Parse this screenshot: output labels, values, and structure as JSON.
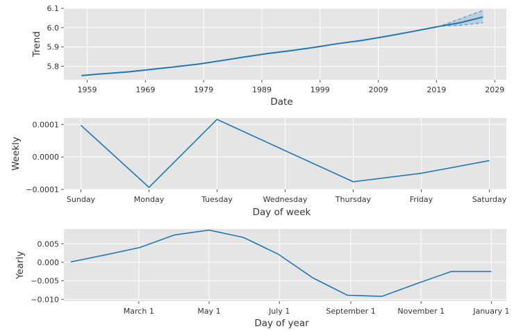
{
  "chart_data": [
    {
      "type": "line",
      "xlabel": "Date",
      "ylabel": "Trend",
      "xlim": [
        1955,
        2031
      ],
      "ylim": [
        5.73,
        6.1
      ],
      "x_ticks": [
        1959,
        1969,
        1979,
        1989,
        1999,
        2009,
        2019,
        2029
      ],
      "x_tick_labels": [
        "1959",
        "1969",
        "1979",
        "1989",
        "1999",
        "2009",
        "2019",
        "2029"
      ],
      "y_ticks": [
        5.8,
        5.9,
        6.0,
        6.1
      ],
      "y_tick_labels": [
        "5.8",
        "5.9",
        "6.0",
        "6.1"
      ],
      "grid": true,
      "series": [
        {
          "x": [
            1958,
            1962,
            1966,
            1970,
            1974,
            1978,
            1982,
            1986,
            1990,
            1994,
            1998,
            2002,
            2006,
            2010,
            2014,
            2018,
            2020,
            2023,
            2027
          ],
          "values": [
            5.752,
            5.762,
            5.771,
            5.784,
            5.797,
            5.811,
            5.829,
            5.848,
            5.866,
            5.881,
            5.898,
            5.917,
            5.933,
            5.953,
            5.975,
            5.998,
            6.01,
            6.025,
            6.055
          ]
        }
      ],
      "uncertainty": {
        "x": [
          2020,
          2023,
          2027
        ],
        "upper": [
          6.012,
          6.045,
          6.09
        ],
        "lower": [
          6.008,
          6.012,
          6.025
        ]
      }
    },
    {
      "type": "line",
      "xlabel": "Day of week",
      "ylabel": "Weekly",
      "categories": [
        "Sunday",
        "Monday",
        "Tuesday",
        "Wednesday",
        "Thursday",
        "Friday",
        "Saturday"
      ],
      "xlim": [
        -0.25,
        6.25
      ],
      "ylim": [
        -0.0001,
        0.00012
      ],
      "y_ticks": [
        0.0001,
        0.0,
        -0.0001
      ],
      "y_tick_labels": [
        "0.0001",
        "0.0000",
        "−0.0001"
      ],
      "grid": true,
      "series": [
        {
          "values": [
            9.75e-05,
            -9.35e-05,
            0.0001155,
            1.94e-05,
            -7.63e-05,
            -5.02e-05,
            -1.13e-05
          ]
        }
      ]
    },
    {
      "type": "line",
      "xlabel": "Day of year",
      "ylabel": "Yearly",
      "xlim": [
        -6,
        378
      ],
      "ylim": [
        -0.0105,
        0.009
      ],
      "x_ticks": [
        59,
        120,
        181,
        243,
        304,
        365
      ],
      "x_tick_labels": [
        "March 1",
        "May 1",
        "July 1",
        "September 1",
        "November 1",
        "January 1"
      ],
      "y_ticks": [
        0.005,
        0.0,
        -0.005,
        -0.01
      ],
      "y_tick_labels": [
        "0.005",
        "0.000",
        "−0.005",
        "−0.010"
      ],
      "grid": true,
      "series": [
        {
          "x": [
            0,
            30,
            60,
            90,
            120,
            150,
            180,
            210,
            240,
            270,
            300,
            330,
            365
          ],
          "values": [
            0.0001,
            0.002,
            0.004,
            0.0074,
            0.0087,
            0.0067,
            0.0022,
            -0.0042,
            -0.0089,
            -0.0092,
            -0.0058,
            -0.0025,
            -0.0025
          ]
        }
      ]
    }
  ]
}
